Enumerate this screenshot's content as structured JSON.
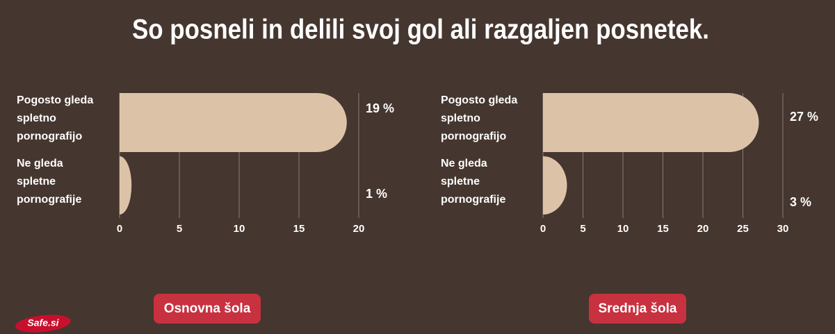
{
  "title": "So posneli in delili svoj gol ali razgaljen posnetek.",
  "logo": "Safe.si",
  "chart_data": [
    {
      "type": "bar",
      "orientation": "horizontal",
      "label": "Osnovna šola",
      "categories": [
        [
          "Pogosto gleda",
          "spletno",
          "pornografijo"
        ],
        [
          "Ne gleda",
          "spletne",
          "pornografije"
        ]
      ],
      "values": [
        19,
        1
      ],
      "value_labels": [
        "19 %",
        "1 %"
      ],
      "color": "#dcc3a8",
      "xlim": [
        0,
        20
      ],
      "xticks": [
        0,
        5,
        10,
        15,
        20
      ],
      "grid": true
    },
    {
      "type": "bar",
      "orientation": "horizontal",
      "label": "Srednja šola",
      "categories": [
        [
          "Pogosto gleda",
          "spletno",
          "pornografijo"
        ],
        [
          "Ne gleda",
          "spletne",
          "pornografije"
        ]
      ],
      "values": [
        27,
        3
      ],
      "value_labels": [
        "27 %",
        "3 %"
      ],
      "color": "#dcc3a8",
      "xlim": [
        0,
        30
      ],
      "xticks": [
        0,
        5,
        10,
        15,
        20,
        25,
        30
      ],
      "grid": true
    }
  ]
}
